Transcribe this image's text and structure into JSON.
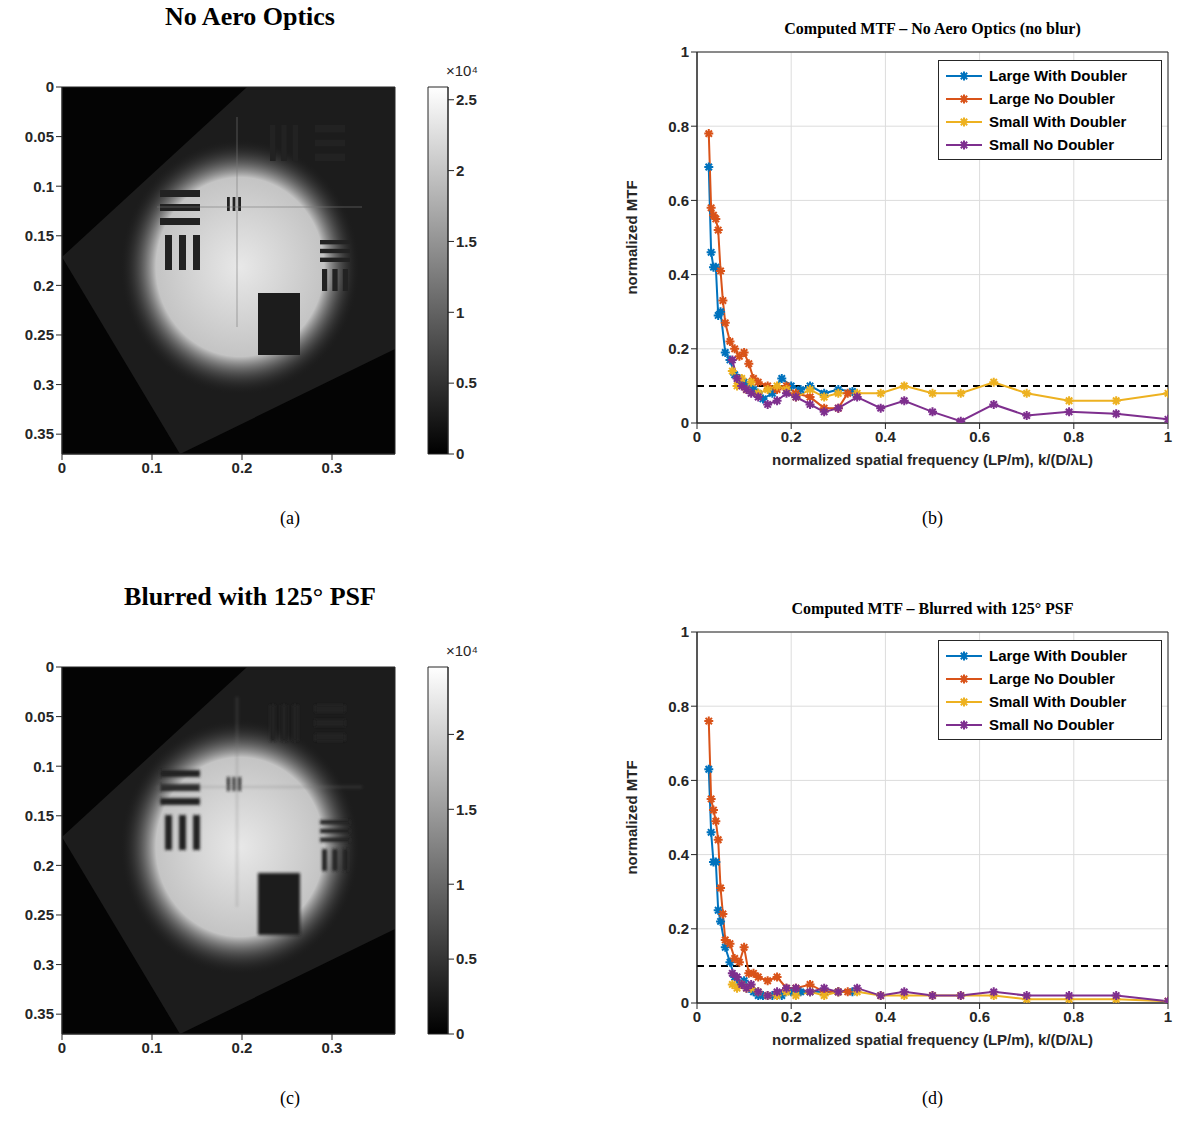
{
  "chart_data": [
    {
      "type": "image",
      "title": "No Aero Optics",
      "caption": "(a)",
      "xlim": [
        0,
        0.37
      ],
      "xticks": [
        0,
        0.1,
        0.2,
        0.3
      ],
      "ylim": [
        0,
        0.37
      ],
      "yticks": [
        0,
        0.05,
        0.1,
        0.15,
        0.2,
        0.25,
        0.3,
        0.35
      ],
      "colorbar": {
        "range": [
          0,
          25900
        ],
        "ticks": [
          0,
          {
            "value": 5000,
            "label": "0.5"
          },
          {
            "value": 10000,
            "label": "1"
          },
          {
            "value": 15000,
            "label": "1.5"
          },
          {
            "value": 20000,
            "label": "2"
          },
          {
            "value": 25000,
            "label": "2.5"
          }
        ],
        "multiplier": "×10⁴"
      }
    },
    {
      "type": "line",
      "title": "Computed MTF – No Aero Optics (no blur)",
      "caption": "(b)",
      "x_label": "normalized spatial frequency (LP/m), k/(D/λL)",
      "y_label": "normalized MTF",
      "xlim": [
        0,
        1
      ],
      "xticks": [
        0,
        0.2,
        0.4,
        0.6,
        0.8,
        1
      ],
      "ylim": [
        0,
        1
      ],
      "yticks": [
        0,
        0.2,
        0.4,
        0.6,
        0.8,
        1
      ],
      "grid": true,
      "legend": "top right",
      "marker": "star",
      "threshold": 0.1,
      "series": [
        {
          "name": "Large With Doubler",
          "color": "#0072bd",
          "x": [
            0.025,
            0.03,
            0.035,
            0.04,
            0.045,
            0.05,
            0.06,
            0.07,
            0.08,
            0.09,
            0.1,
            0.11,
            0.12,
            0.13,
            0.14,
            0.16,
            0.18,
            0.2,
            0.22,
            0.24,
            0.27,
            0.3,
            0.33
          ],
          "values": [
            0.69,
            0.46,
            0.42,
            0.42,
            0.29,
            0.3,
            0.19,
            0.17,
            0.13,
            0.12,
            0.11,
            0.1,
            0.09,
            0.08,
            0.065,
            0.08,
            0.12,
            0.1,
            0.09,
            0.1,
            0.08,
            0.09,
            0.085
          ]
        },
        {
          "name": "Large No Doubler",
          "color": "#d95319",
          "x": [
            0.025,
            0.03,
            0.035,
            0.04,
            0.045,
            0.05,
            0.055,
            0.06,
            0.07,
            0.08,
            0.09,
            0.1,
            0.11,
            0.12,
            0.13,
            0.15,
            0.17,
            0.19,
            0.21,
            0.24,
            0.27,
            0.3,
            0.32
          ],
          "values": [
            0.78,
            0.58,
            0.56,
            0.55,
            0.52,
            0.41,
            0.33,
            0.27,
            0.22,
            0.2,
            0.18,
            0.19,
            0.16,
            0.12,
            0.11,
            0.1,
            0.09,
            0.1,
            0.08,
            0.07,
            0.04,
            0.04,
            0.08
          ]
        },
        {
          "name": "Small With Doubler",
          "color": "#edb120",
          "x": [
            0.075,
            0.085,
            0.095,
            0.105,
            0.115,
            0.13,
            0.15,
            0.17,
            0.19,
            0.21,
            0.24,
            0.27,
            0.3,
            0.34,
            0.39,
            0.44,
            0.5,
            0.56,
            0.63,
            0.7,
            0.79,
            0.89,
            1
          ],
          "values": [
            0.14,
            0.1,
            0.12,
            0.09,
            0.11,
            0.08,
            0.09,
            0.1,
            0.09,
            0.07,
            0.09,
            0.07,
            0.08,
            0.08,
            0.08,
            0.1,
            0.08,
            0.08,
            0.11,
            0.08,
            0.06,
            0.06,
            0.08
          ]
        },
        {
          "name": "Small No Doubler",
          "color": "#7e2f8e",
          "x": [
            0.075,
            0.085,
            0.095,
            0.105,
            0.115,
            0.13,
            0.15,
            0.17,
            0.19,
            0.21,
            0.24,
            0.27,
            0.3,
            0.34,
            0.39,
            0.44,
            0.5,
            0.56,
            0.63,
            0.7,
            0.79,
            0.89,
            1
          ],
          "values": [
            0.17,
            0.12,
            0.1,
            0.09,
            0.08,
            0.07,
            0.05,
            0.06,
            0.08,
            0.07,
            0.05,
            0.03,
            0.04,
            0.07,
            0.04,
            0.06,
            0.03,
            0.005,
            0.05,
            0.02,
            0.03,
            0.025,
            0.01
          ]
        }
      ]
    },
    {
      "type": "image",
      "title": "Blurred with 125° PSF",
      "caption": "(c)",
      "xlim": [
        0,
        0.37
      ],
      "xticks": [
        0,
        0.1,
        0.2,
        0.3
      ],
      "ylim": [
        0,
        0.37
      ],
      "yticks": [
        0,
        0.05,
        0.1,
        0.15,
        0.2,
        0.25,
        0.3,
        0.35
      ],
      "colorbar": {
        "range": [
          0,
          24500
        ],
        "ticks": [
          0,
          {
            "value": 5000,
            "label": "0.5"
          },
          {
            "value": 10000,
            "label": "1"
          },
          {
            "value": 15000,
            "label": "1.5"
          },
          {
            "value": 20000,
            "label": "2"
          }
        ],
        "multiplier": "×10⁴"
      }
    },
    {
      "type": "line",
      "title": "Computed MTF – Blurred with 125° PSF",
      "caption": "(d)",
      "x_label": "normalized spatial frequency (LP/m), k/(D/λL)",
      "y_label": "normalized MTF",
      "xlim": [
        0,
        1
      ],
      "xticks": [
        0,
        0.2,
        0.4,
        0.6,
        0.8,
        1
      ],
      "ylim": [
        0,
        1
      ],
      "yticks": [
        0,
        0.2,
        0.4,
        0.6,
        0.8,
        1
      ],
      "grid": true,
      "legend": "top right",
      "marker": "star",
      "threshold": 0.1,
      "series": [
        {
          "name": "Large With Doubler",
          "color": "#0072bd",
          "x": [
            0.025,
            0.03,
            0.035,
            0.04,
            0.045,
            0.05,
            0.06,
            0.07,
            0.08,
            0.09,
            0.1,
            0.11,
            0.12,
            0.13,
            0.14,
            0.16,
            0.18,
            0.2,
            0.22,
            0.24,
            0.27,
            0.3,
            0.33
          ],
          "values": [
            0.63,
            0.46,
            0.38,
            0.38,
            0.25,
            0.22,
            0.15,
            0.11,
            0.07,
            0.05,
            0.06,
            0.04,
            0.03,
            0.02,
            0.02,
            0.02,
            0.02,
            0.03,
            0.03,
            0.03,
            0.03,
            0.03,
            0.03
          ]
        },
        {
          "name": "Large No Doubler",
          "color": "#d95319",
          "x": [
            0.025,
            0.03,
            0.035,
            0.04,
            0.045,
            0.05,
            0.055,
            0.06,
            0.07,
            0.08,
            0.09,
            0.1,
            0.11,
            0.12,
            0.13,
            0.15,
            0.17,
            0.19,
            0.21,
            0.24,
            0.27,
            0.3,
            0.32
          ],
          "values": [
            0.76,
            0.55,
            0.52,
            0.49,
            0.44,
            0.31,
            0.24,
            0.17,
            0.16,
            0.12,
            0.11,
            0.15,
            0.08,
            0.08,
            0.07,
            0.06,
            0.07,
            0.04,
            0.04,
            0.05,
            0.03,
            0.03,
            0.03
          ]
        },
        {
          "name": "Small With Doubler",
          "color": "#edb120",
          "x": [
            0.075,
            0.085,
            0.095,
            0.105,
            0.115,
            0.13,
            0.15,
            0.17,
            0.19,
            0.21,
            0.24,
            0.27,
            0.3,
            0.34,
            0.39,
            0.44,
            0.5,
            0.56,
            0.63,
            0.7,
            0.79,
            0.89,
            1
          ],
          "values": [
            0.05,
            0.04,
            0.05,
            0.04,
            0.04,
            0.03,
            0.02,
            0.02,
            0.03,
            0.02,
            0.03,
            0.02,
            0.03,
            0.03,
            0.02,
            0.02,
            0.02,
            0.02,
            0.02,
            0.01,
            0.01,
            0.01,
            0.005
          ]
        },
        {
          "name": "Small No Doubler",
          "color": "#7e2f8e",
          "x": [
            0.075,
            0.085,
            0.095,
            0.105,
            0.115,
            0.13,
            0.15,
            0.17,
            0.19,
            0.21,
            0.24,
            0.27,
            0.3,
            0.34,
            0.39,
            0.44,
            0.5,
            0.56,
            0.63,
            0.7,
            0.79,
            0.89,
            1
          ],
          "values": [
            0.08,
            0.07,
            0.05,
            0.04,
            0.05,
            0.03,
            0.02,
            0.03,
            0.04,
            0.04,
            0.03,
            0.04,
            0.03,
            0.04,
            0.02,
            0.03,
            0.02,
            0.02,
            0.03,
            0.02,
            0.02,
            0.02,
            0.005
          ]
        }
      ]
    }
  ]
}
